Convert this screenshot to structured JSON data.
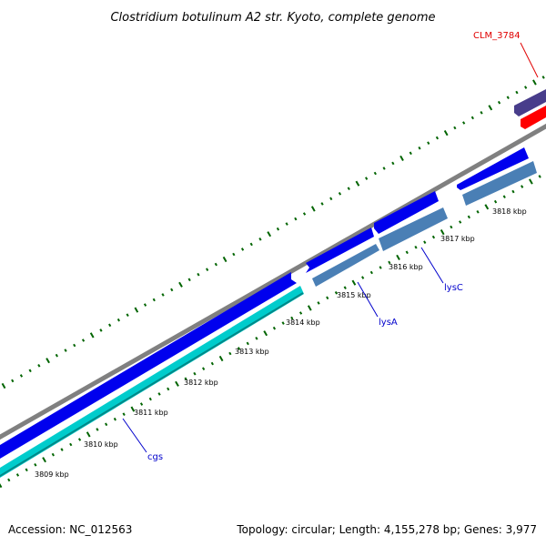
{
  "title": "Clostridium botulinum A2 str. Kyoto, complete genome",
  "footer": {
    "accession": "Accession: NC_012563",
    "topology": "Topology: circular; Length: 4,155,278 bp; Genes: 3,977"
  },
  "colors": {
    "backbone": "#808080",
    "cds_forward": "#0000ee",
    "cds_reverse": "#4a7fb5",
    "cds_reverse_dark": "#3a6a9a",
    "cyan_feature": "#00cccc",
    "red_feature": "#ff0000",
    "purple_feature": "#483d8b",
    "tick": "#006400",
    "gene_label_blue": "#0000cc",
    "gene_label_red": "#e00000"
  },
  "kbp_labels": [
    "3809 kbp",
    "3810 kbp",
    "3811 kbp",
    "3812 kbp",
    "3813 kbp",
    "3814 kbp",
    "3815 kbp",
    "3816 kbp",
    "3817 kbp",
    "3818 kbp"
  ],
  "gene_labels": [
    {
      "text": "cgs",
      "color": "blue"
    },
    {
      "text": "lysA",
      "color": "blue"
    },
    {
      "text": "lysC",
      "color": "blue"
    },
    {
      "text": "CLM_3784",
      "color": "red"
    }
  ]
}
